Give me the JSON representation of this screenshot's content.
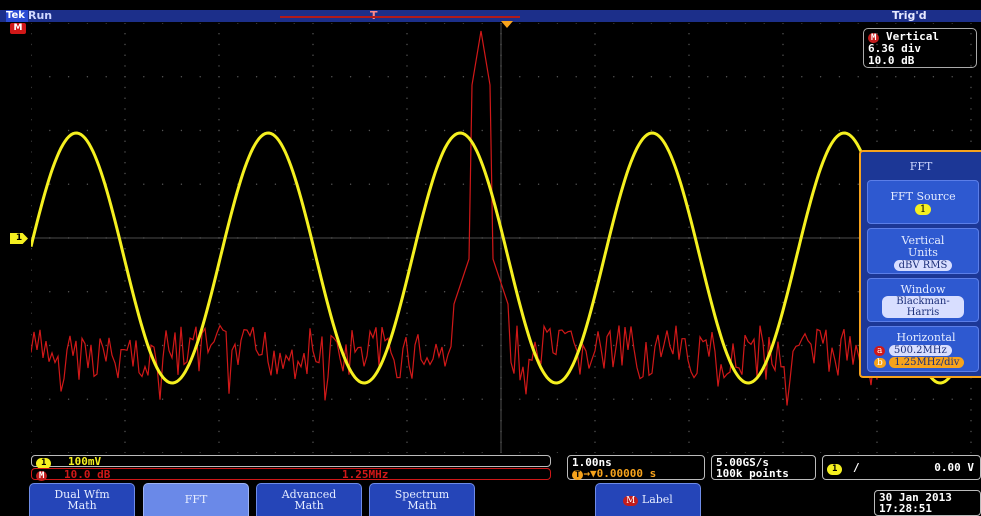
{
  "status": {
    "brand": "Tek",
    "run_state": "Run",
    "trigger_state": "Trig'd",
    "t_marker": "T",
    "ch1_label": "1",
    "math_label": "M"
  },
  "vertical_readout": {
    "badge": "M",
    "title": "Vertical",
    "divisions": "6.36 div",
    "scale": "10.0 dB"
  },
  "fft_menu": {
    "title": "FFT",
    "items": [
      {
        "label": "FFT Source",
        "value": "1"
      },
      {
        "label": "Vertical Units",
        "value": "dBV RMS"
      },
      {
        "label": "Window",
        "value": "Blackman-Harris"
      },
      {
        "label": "Horizontal",
        "center_badge": "a",
        "center": "500.2MHz",
        "scale_badge": "b",
        "scale": "1.25MHz/div"
      }
    ]
  },
  "readouts": {
    "ch1": {
      "badge": "1",
      "value": "100mV"
    },
    "math": {
      "badge": "M",
      "value": "10.0 dB",
      "hz": "1.25MHz"
    },
    "timebase": {
      "value": "1.00ns",
      "delay_badge": "T",
      "delay": "→▼0.00000 s"
    },
    "acquisition": {
      "rate": "5.00GS/s",
      "points": "100k points"
    },
    "trigger": {
      "badge": "1",
      "slope": "∕",
      "level": "0.00 V"
    }
  },
  "softkeys": [
    {
      "label": "Dual Wfm Math",
      "active": false
    },
    {
      "label": "FFT",
      "active": true
    },
    {
      "label": "Advanced Math",
      "active": false
    },
    {
      "label": "Spectrum Math",
      "active": false
    },
    {
      "badge": "M",
      "label": "Label",
      "active": false
    }
  ],
  "datetime": {
    "date": "30 Jan 2013",
    "time": "17:28:51"
  },
  "colors": {
    "ch1_trace": "#f5f020",
    "math_trace": "#d01818",
    "accent": "#f7a31c",
    "menu_bg": "#1c3796"
  }
}
